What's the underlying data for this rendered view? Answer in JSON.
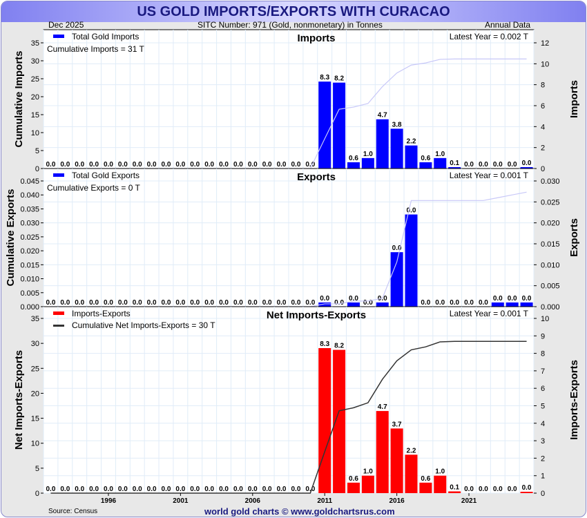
{
  "title": "US GOLD IMPORTS/EXPORTS WITH CURACAO",
  "date": "Dec  2025",
  "sitc": "SITC Number: 971 (Gold, nonmonetary) in Tonnes",
  "period": "Annual Data",
  "source": "Source: Census",
  "site": "world gold charts © www.goldchartsrus.com",
  "colors": {
    "bar": "#0000ff",
    "net": "#ff0000",
    "cum": "#c8c8f8",
    "cumnet": "#333333"
  },
  "chart_data": [
    {
      "type": "bar",
      "title": "Imports",
      "legend": "Total Gold Imports",
      "note": "Cumulative Imports = 31 T",
      "latest": "Latest Year = 0.002 T",
      "ylabel_left": "Cumulative Imports",
      "ylabel_right": "Imports",
      "ylim_left": [
        0,
        35
      ],
      "ylim_right": [
        0,
        12
      ],
      "yticks_left": [
        0,
        5,
        10,
        15,
        20,
        25,
        30,
        35
      ],
      "yticks_right": [
        0,
        2,
        4,
        6,
        8,
        10,
        12
      ],
      "values": [
        0,
        0,
        0,
        0,
        0,
        0,
        0,
        0,
        0,
        0,
        0,
        0,
        0,
        0,
        0,
        0,
        0,
        0,
        0,
        8.3,
        8.2,
        0.6,
        1.0,
        4.7,
        3.8,
        2.2,
        0.6,
        1.0,
        0.1,
        0,
        0,
        0,
        0,
        0.002
      ],
      "labels": [
        "0.0",
        "0.0",
        "0.0",
        "0.0",
        "0.0",
        "0.0",
        "0.0",
        "0.0",
        "0.0",
        "0.0",
        "0.0",
        "0.0",
        "0.0",
        "0.0",
        "0.0",
        "0.0",
        "0.0",
        "0.0",
        "0.0",
        "8.3",
        "8.2",
        "0.6",
        "1.0",
        "4.7",
        "3.8",
        "2.2",
        "0.6",
        "1.0",
        "0.1",
        "0.0",
        "0.0",
        "0.0",
        "0.0",
        "0.0"
      ]
    },
    {
      "type": "bar",
      "title": "Exports",
      "legend": "Total Gold Exports",
      "note": "Cumulative Exports = 0 T",
      "latest": "Latest Year = 0.001 T",
      "ylabel_left": "Cumulative Exports",
      "ylabel_right": "Exports",
      "ylim_left": [
        0,
        0.045
      ],
      "ylim_right": [
        0,
        0.03
      ],
      "yticks_left": [
        "0.000",
        "0.005",
        "0.010",
        "0.015",
        "0.020",
        "0.025",
        "0.030",
        "0.035",
        "0.040",
        "0.045"
      ],
      "yticks_right": [
        "0.000",
        "0.005",
        "0.010",
        "0.015",
        "0.020",
        "0.025",
        "0.030"
      ],
      "values": [
        0,
        0,
        0,
        0,
        0,
        0,
        0,
        0,
        0,
        0,
        0,
        0,
        0,
        0,
        0,
        0,
        0,
        0,
        0,
        0.001,
        0,
        0.001,
        0,
        0.001,
        0.013,
        0.022,
        0,
        0,
        0,
        0,
        0,
        0.001,
        0.001,
        0.001
      ],
      "labels": [
        "0.0",
        "0.0",
        "0.0",
        "0.0",
        "0.0",
        "0.0",
        "0.0",
        "0.0",
        "0.0",
        "0.0",
        "0.0",
        "0.0",
        "0.0",
        "0.0",
        "0.0",
        "0.0",
        "0.0",
        "0.0",
        "0.0",
        "0.0",
        "0.0",
        "0.0",
        "0.0",
        "0.0",
        "0.0",
        "0.0",
        "0.0",
        "0.0",
        "0.0",
        "0.0",
        "0.0",
        "0.0",
        "0.0",
        "0.0"
      ]
    },
    {
      "type": "bar",
      "title": "Net Imports-Exports",
      "legend": "Imports-Exports",
      "legend2": "Cumulative Net Imports-Exports = 30 T",
      "latest": "Latest Year = 0.001 T",
      "ylabel_left": "Net Imports-Exports",
      "ylabel_right": "Imports-Exports",
      "ylim_left": [
        0,
        35
      ],
      "ylim_right": [
        0,
        10
      ],
      "yticks_left": [
        0,
        5,
        10,
        15,
        20,
        25,
        30,
        35
      ],
      "yticks_right": [
        0,
        1,
        2,
        3,
        4,
        5,
        6,
        7,
        8,
        9,
        10
      ],
      "values": [
        0,
        0,
        0,
        0,
        0,
        0,
        0,
        0,
        0,
        0,
        0,
        0,
        0,
        0,
        0,
        0,
        0,
        0,
        0,
        8.3,
        8.2,
        0.6,
        1.0,
        4.7,
        3.7,
        2.2,
        0.6,
        1.0,
        0.1,
        0,
        0,
        0,
        0,
        0.001
      ],
      "labels": [
        "0.0",
        "0.0",
        "0.0",
        "0.0",
        "0.0",
        "0.0",
        "0.0",
        "0.0",
        "0.0",
        "0.0",
        "0.0",
        "0.0",
        "0.0",
        "0.0",
        "0.0",
        "0.0",
        "0.0",
        "0.0",
        "0.0",
        "8.3",
        "8.2",
        "0.6",
        "1.0",
        "4.7",
        "3.7",
        "2.2",
        "0.6",
        "1.0",
        "0.1",
        "0.0",
        "0.0",
        "0.0",
        "0.0",
        "0.0"
      ]
    }
  ],
  "x_start": 1992,
  "xticks": [
    "1996",
    "2001",
    "2006",
    "2011",
    "2016",
    "2021"
  ]
}
